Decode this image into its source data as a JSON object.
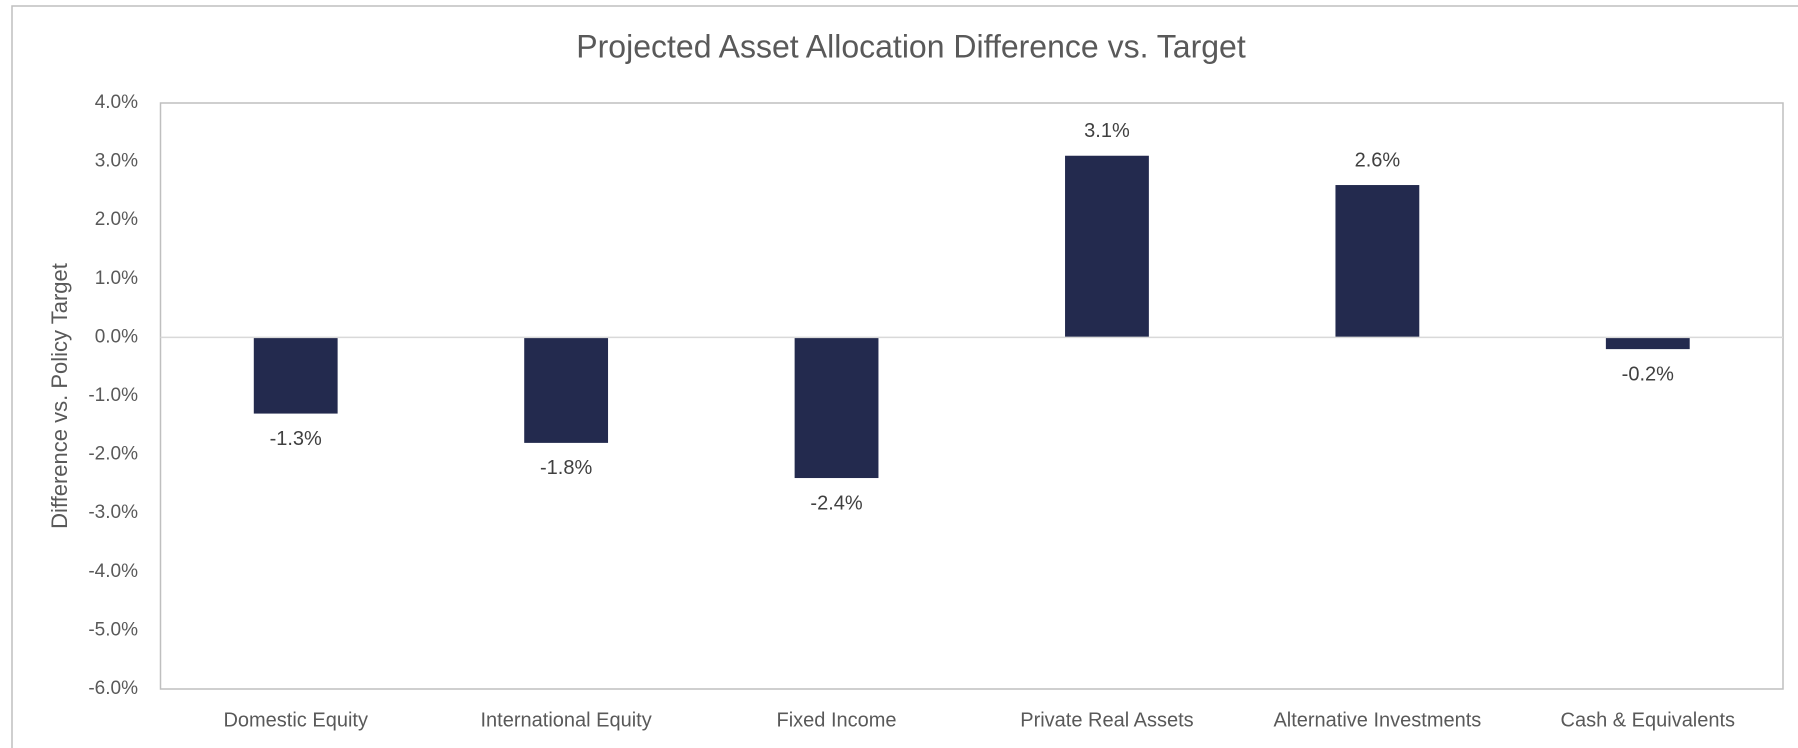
{
  "chart_data": {
    "type": "bar",
    "title": "Projected Asset Allocation Difference vs. Target",
    "y_label": "Difference vs. Policy Target",
    "categories": [
      "Domestic Equity",
      "International Equity",
      "Fixed Income",
      "Private Real Assets",
      "Alternative Investments",
      "Cash & Equivalents"
    ],
    "values": [
      -1.3,
      -1.8,
      -2.4,
      3.1,
      2.6,
      -0.2
    ],
    "value_labels": [
      "-1.3%",
      "-1.8%",
      "-2.4%",
      "3.1%",
      "2.6%",
      "-0.2%"
    ],
    "color": "#232a4e",
    "ylim": [
      -6,
      4
    ],
    "yticks": [
      {
        "value": -6,
        "label": "-6.0%"
      },
      {
        "value": -5,
        "label": "-5.0%"
      },
      {
        "value": -4,
        "label": "-4.0%"
      },
      {
        "value": -3,
        "label": "-3.0%"
      },
      {
        "value": -2,
        "label": "-2.0%"
      },
      {
        "value": -1,
        "label": "-1.0%"
      },
      {
        "value": 0,
        "label": "0.0%"
      },
      {
        "value": 1,
        "label": "1.0%"
      },
      {
        "value": 2,
        "label": "2.0%"
      },
      {
        "value": 3,
        "label": "3.0%"
      },
      {
        "value": 4,
        "label": "4.0%"
      }
    ],
    "grid": false
  }
}
